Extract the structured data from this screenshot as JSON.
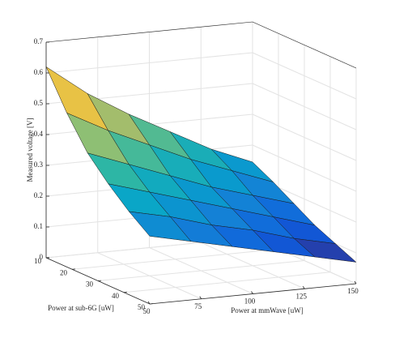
{
  "chart_data": {
    "type": "surface",
    "xlabel": "Power at sub-6G [uW]",
    "ylabel": "Power at mmWave [uW]",
    "zlabel": "Measured voltage [V]",
    "x": [
      10,
      18,
      26,
      34,
      42,
      50
    ],
    "y": [
      50,
      70,
      90,
      110,
      130,
      150
    ],
    "z": [
      [
        0.62,
        0.52,
        0.44,
        0.37,
        0.3,
        0.245
      ],
      [
        0.5,
        0.43,
        0.37,
        0.31,
        0.26,
        0.21
      ],
      [
        0.4,
        0.35,
        0.3,
        0.25,
        0.21,
        0.17
      ],
      [
        0.33,
        0.29,
        0.25,
        0.21,
        0.17,
        0.13
      ],
      [
        0.27,
        0.24,
        0.2,
        0.17,
        0.13,
        0.1
      ],
      [
        0.22,
        0.19,
        0.16,
        0.13,
        0.1,
        0.07
      ]
    ],
    "xlim": [
      10,
      50
    ],
    "ylim": [
      50,
      150
    ],
    "zlim": [
      0,
      0.7
    ],
    "xticks": [
      10,
      20,
      30,
      40,
      50
    ],
    "yticks": [
      50,
      75,
      100,
      125,
      150
    ],
    "zticks": [
      0,
      0.1,
      0.2,
      0.3,
      0.4,
      0.5,
      0.6,
      0.7
    ],
    "grid": true,
    "colormap": [
      "#352a87",
      "#0f5cdd",
      "#1481d6",
      "#06a4ca",
      "#2eb7a4",
      "#87bf77",
      "#d1bb59",
      "#fec832",
      "#f9fb0e"
    ]
  }
}
